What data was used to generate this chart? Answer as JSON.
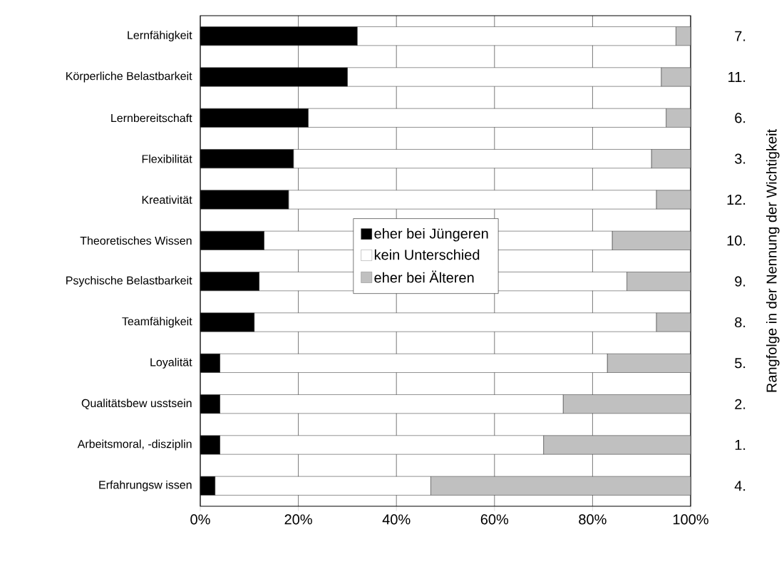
{
  "chart_data": {
    "type": "bar",
    "orientation": "horizontal",
    "stacked": true,
    "categories": [
      "Lernfähigkeit",
      "Körperliche Belastbarkeit",
      "Lernbereitschaft",
      "Flexibilität",
      "Kreativität",
      "Theoretisches Wissen",
      "Psychische Belastbarkeit",
      "Teamfähigkeit",
      "Loyalität",
      "Qualitätsbew usstsein",
      "Arbeitsmoral, -disziplin",
      "Erfahrungsw issen"
    ],
    "series": [
      {
        "name": "eher bei Jüngeren",
        "color": "#000000",
        "values": [
          32,
          30,
          22,
          19,
          18,
          13,
          12,
          11,
          4,
          4,
          4,
          3
        ]
      },
      {
        "name": "kein Unterschied",
        "color": "#ffffff",
        "values": [
          65,
          64,
          73,
          73,
          75,
          71,
          75,
          82,
          79,
          70,
          66,
          44
        ]
      },
      {
        "name": "eher bei Älteren",
        "color": "#c0c0c0",
        "values": [
          3,
          6,
          5,
          8,
          7,
          16,
          13,
          7,
          17,
          26,
          30,
          53
        ]
      }
    ],
    "xlim": [
      0,
      100
    ],
    "xticks": [
      {
        "value": 0,
        "label": "0%"
      },
      {
        "value": 20,
        "label": "20%"
      },
      {
        "value": 40,
        "label": "40%"
      },
      {
        "value": 60,
        "label": "60%"
      },
      {
        "value": 80,
        "label": "80%"
      },
      {
        "value": 100,
        "label": "100%"
      }
    ],
    "y2label": "Rangfolge in der Nennung der Wichtigkeit",
    "annotations": [
      "7.",
      "11.",
      "6.",
      "3.",
      "12.",
      "10.",
      "9.",
      "8.",
      "5.",
      "2.",
      "1.",
      "4."
    ],
    "grid": "x",
    "legend": "center"
  }
}
